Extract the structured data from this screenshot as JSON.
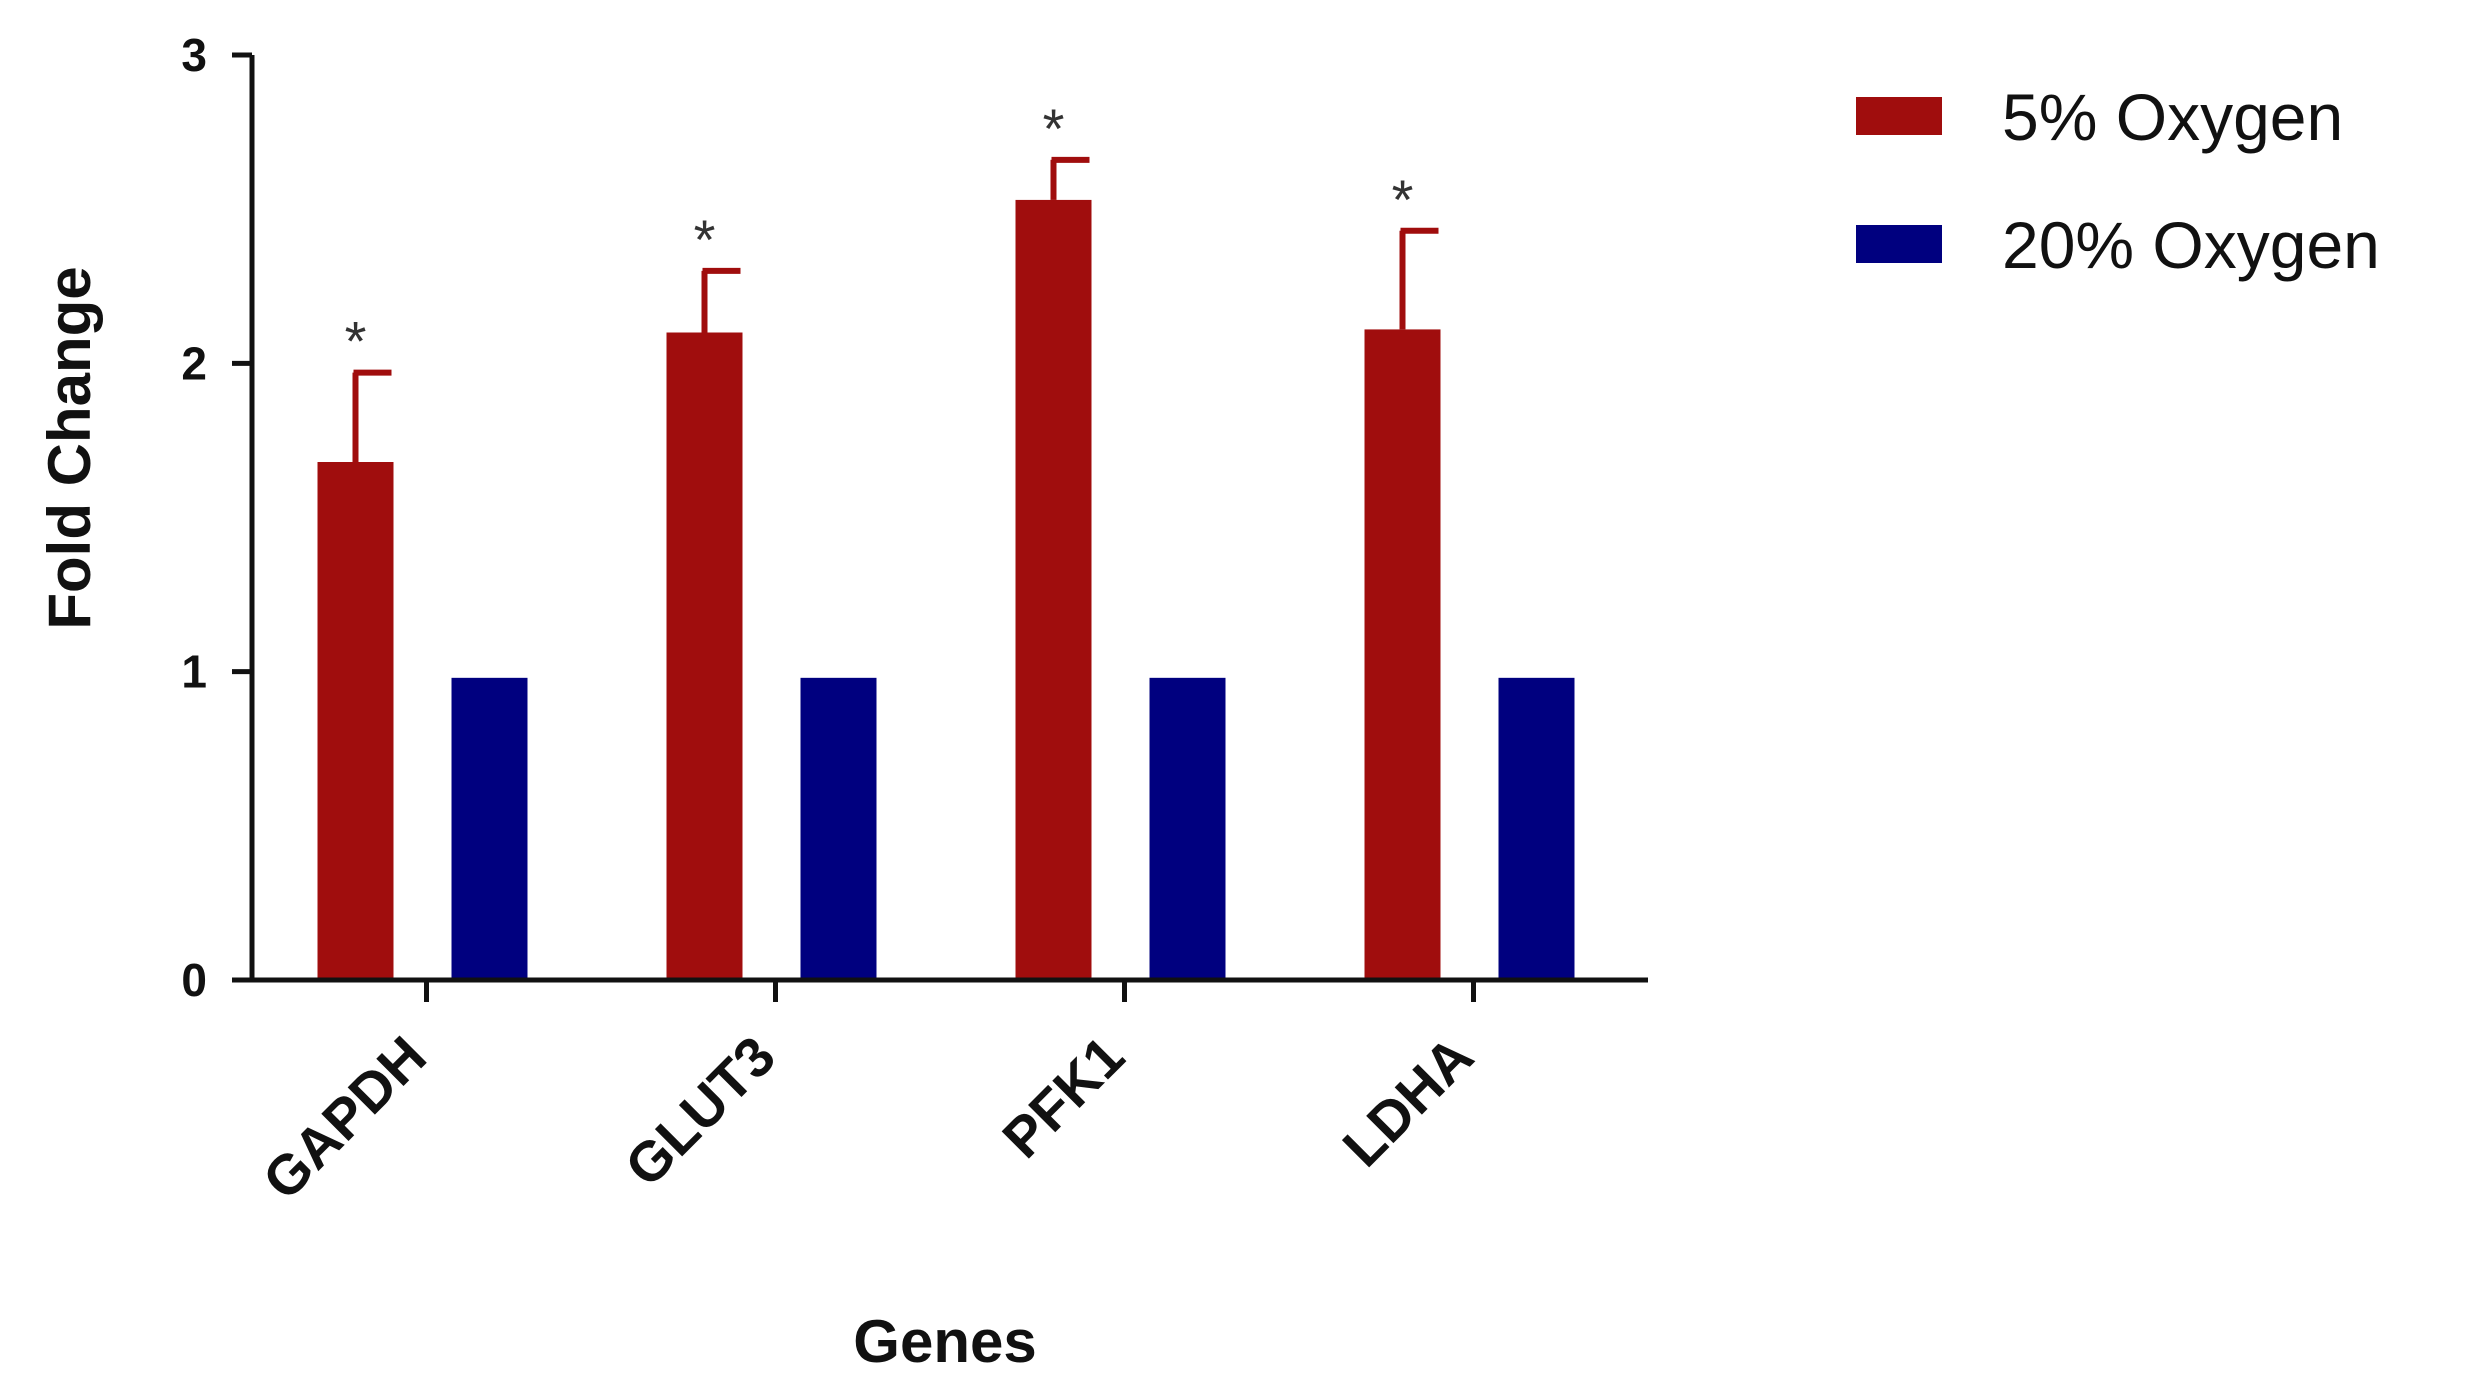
{
  "chart_data": {
    "type": "bar",
    "title": "",
    "xlabel": "Genes",
    "ylabel": "Fold Change",
    "ylim": [
      0,
      3
    ],
    "yticks": [
      "0",
      "1",
      "2",
      "3"
    ],
    "categories": [
      "GAPDH",
      "GLUT3",
      "PFK1",
      "LDHA"
    ],
    "series": [
      {
        "name": "5% Oxygen",
        "color": "#a00d0d",
        "values": [
          1.68,
          2.1,
          2.53,
          2.11
        ],
        "error": [
          0.29,
          0.2,
          0.13,
          0.32
        ],
        "significance": [
          "*",
          "*",
          "*",
          "*"
        ]
      },
      {
        "name": "20% Oxygen",
        "color": "#00007f",
        "values": [
          0.98,
          0.98,
          0.98,
          0.98
        ]
      }
    ],
    "grid": false,
    "legend_position": "top-right"
  }
}
